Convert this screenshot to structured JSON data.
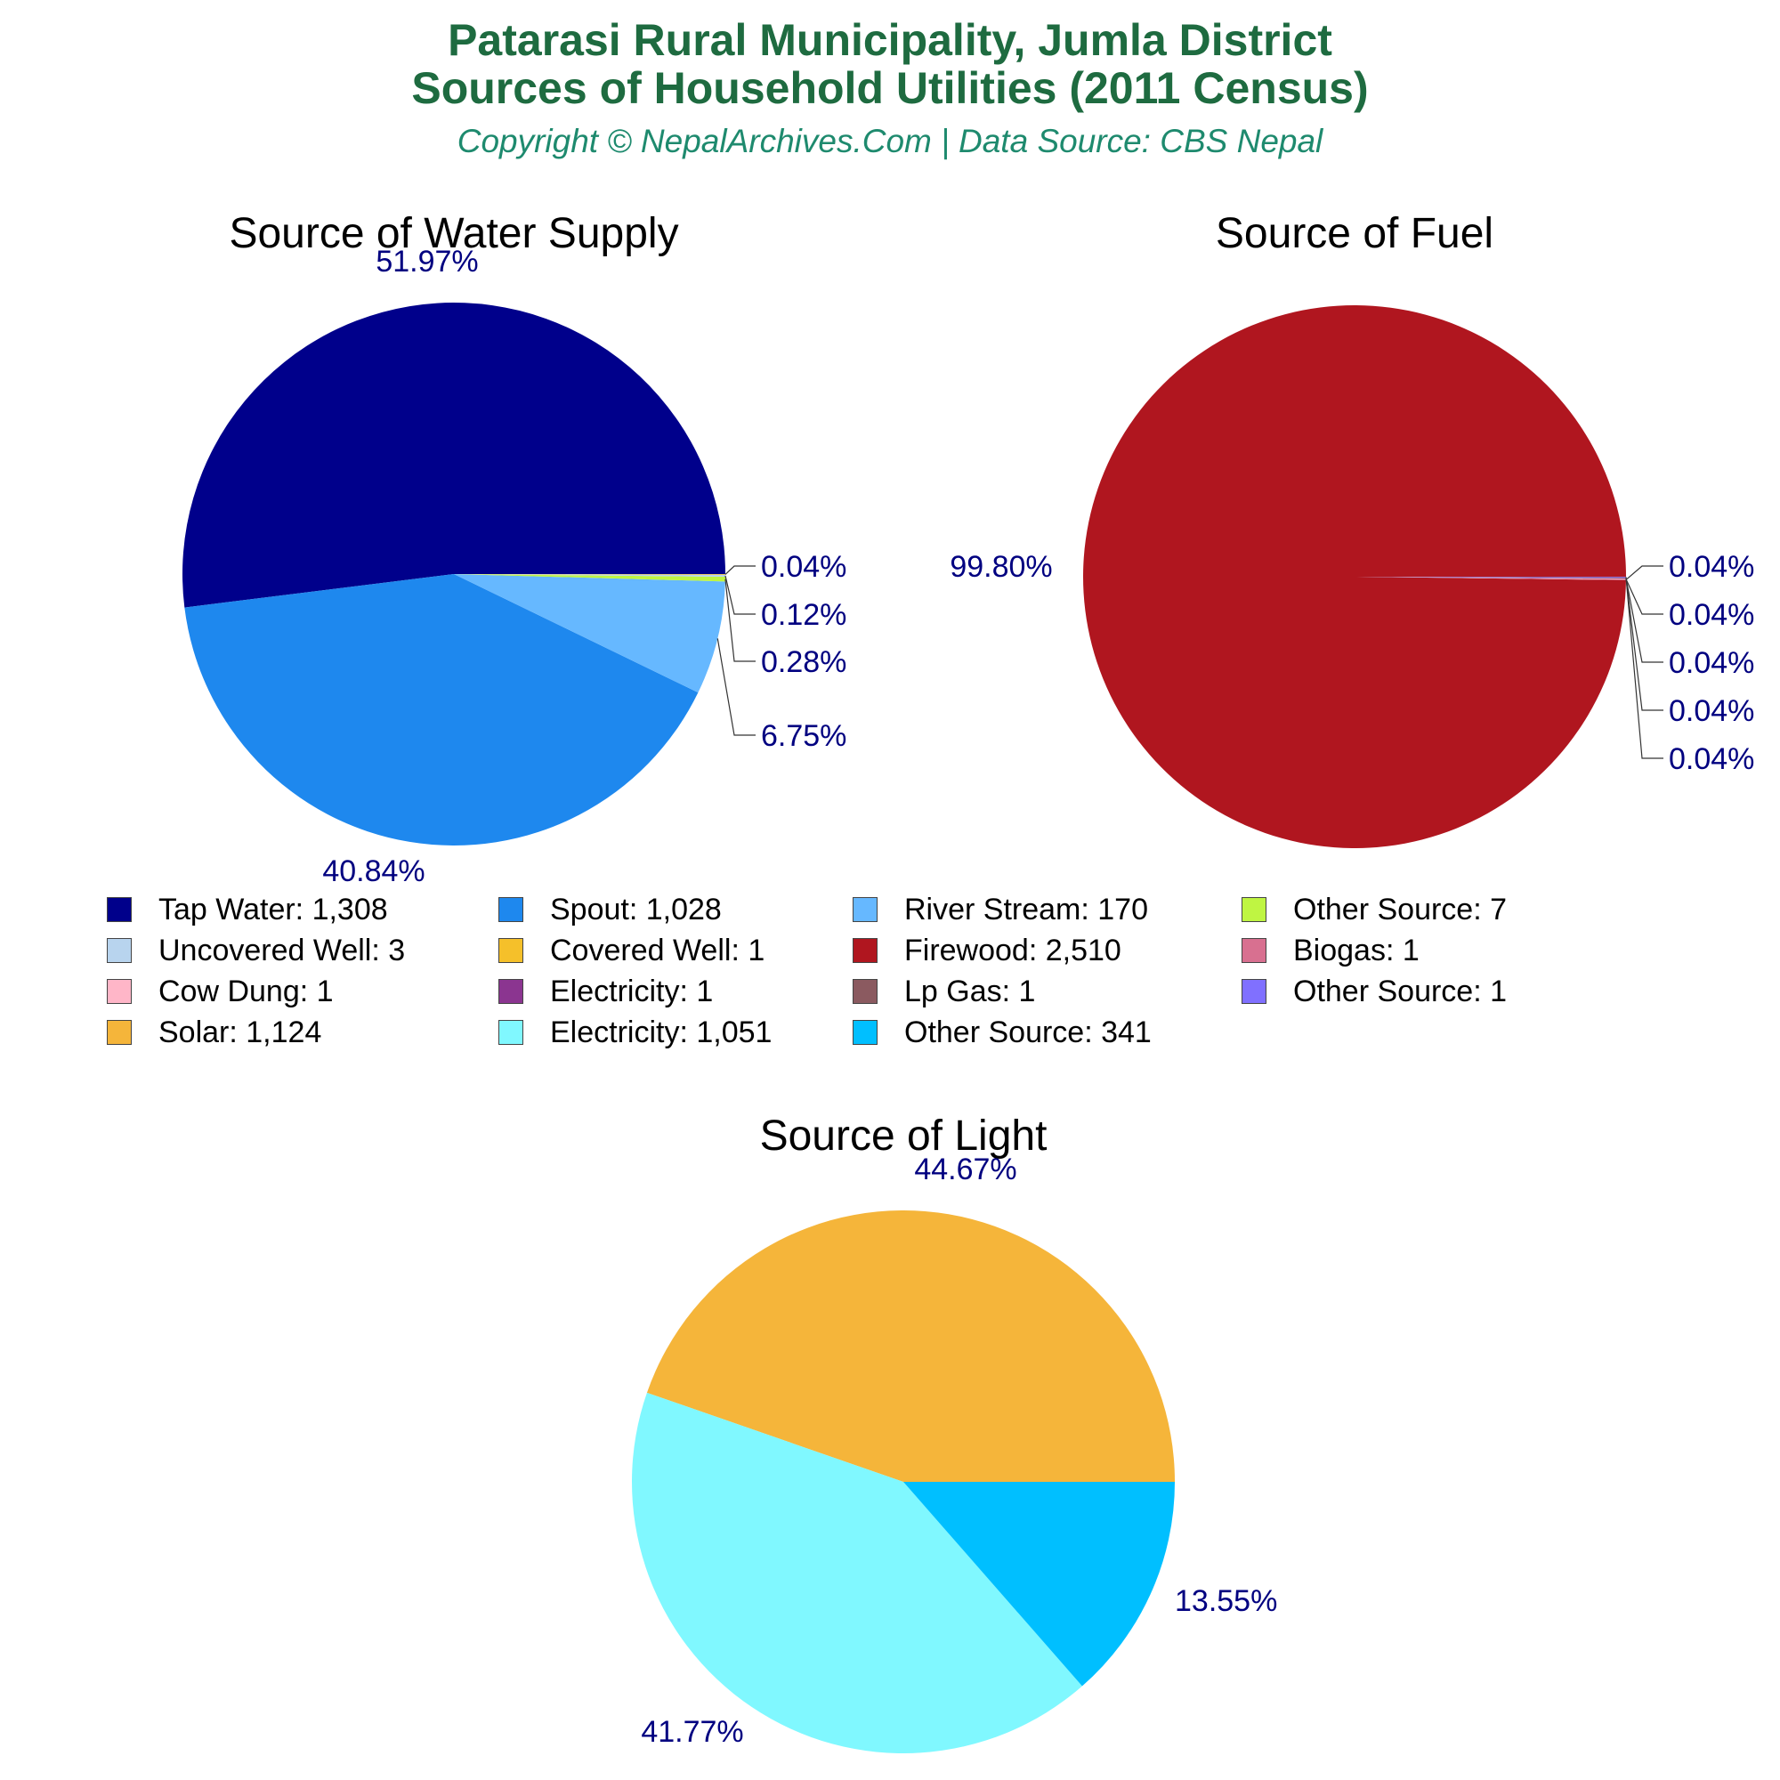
{
  "header": {
    "title_line1": "Patarasi Rural Municipality, Jumla District",
    "title_line2": "Sources of Household Utilities (2011 Census)",
    "subtitle": "Copyright © NepalArchives.Com | Data Source: CBS Nepal"
  },
  "colors": {
    "title": "#1e6b40",
    "subtitle": "#1e8a6e",
    "pct_label": "#000080"
  },
  "chart_data": [
    {
      "type": "pie",
      "title": "Source of Water Supply",
      "slices": [
        {
          "label": "Tap Water",
          "value": 1308,
          "percent": "51.97%",
          "color": "#00008b"
        },
        {
          "label": "Spout",
          "value": 1028,
          "percent": "40.84%",
          "color": "#1e88ee"
        },
        {
          "label": "River Stream",
          "value": 170,
          "percent": "6.75%",
          "color": "#66b8ff"
        },
        {
          "label": "Other Source",
          "value": 7,
          "percent": "0.28%",
          "color": "#bff542"
        },
        {
          "label": "Uncovered Well",
          "value": 3,
          "percent": "0.12%",
          "color": "#b8d4ee"
        },
        {
          "label": "Covered Well",
          "value": 1,
          "percent": "0.04%",
          "color": "#f5c02a"
        }
      ]
    },
    {
      "type": "pie",
      "title": "Source of Fuel",
      "slices": [
        {
          "label": "Firewood",
          "value": 2510,
          "percent": "99.80%",
          "color": "#b0161f"
        },
        {
          "label": "Biogas",
          "value": 1,
          "percent": "0.04%",
          "color": "#d87090"
        },
        {
          "label": "Cow Dung",
          "value": 1,
          "percent": "0.04%",
          "color": "#ffb6c8"
        },
        {
          "label": "Electricity",
          "value": 1,
          "percent": "0.04%",
          "color": "#8b3590"
        },
        {
          "label": "Lp Gas",
          "value": 1,
          "percent": "0.04%",
          "color": "#8b5a60"
        },
        {
          "label": "Other Source",
          "value": 1,
          "percent": "0.04%",
          "color": "#8070ff"
        }
      ]
    },
    {
      "type": "pie",
      "title": "Source of Light",
      "slices": [
        {
          "label": "Solar",
          "value": 1124,
          "percent": "44.67%",
          "color": "#f5b53a"
        },
        {
          "label": "Electricity",
          "value": 1051,
          "percent": "41.77%",
          "color": "#80f8ff"
        },
        {
          "label": "Other Source",
          "value": 341,
          "percent": "13.55%",
          "color": "#00bfff"
        }
      ]
    }
  ],
  "legend": [
    {
      "text": "Tap Water: 1,308",
      "color": "#00008b"
    },
    {
      "text": "Spout: 1,028",
      "color": "#1e88ee"
    },
    {
      "text": "River Stream: 170",
      "color": "#66b8ff"
    },
    {
      "text": "Other Source: 7",
      "color": "#bff542"
    },
    {
      "text": "Uncovered Well: 3",
      "color": "#b8d4ee"
    },
    {
      "text": "Covered Well: 1",
      "color": "#f5c02a"
    },
    {
      "text": "Firewood: 2,510",
      "color": "#b0161f"
    },
    {
      "text": "Biogas: 1",
      "color": "#d87090"
    },
    {
      "text": "Cow Dung: 1",
      "color": "#ffb6c8"
    },
    {
      "text": "Electricity: 1",
      "color": "#8b3590"
    },
    {
      "text": "Lp Gas: 1",
      "color": "#8b5a60"
    },
    {
      "text": "Other Source: 1",
      "color": "#8070ff"
    },
    {
      "text": "Solar: 1,124",
      "color": "#f5b53a"
    },
    {
      "text": "Electricity: 1,051",
      "color": "#80f8ff"
    },
    {
      "text": "Other Source: 341",
      "color": "#00bfff"
    }
  ]
}
